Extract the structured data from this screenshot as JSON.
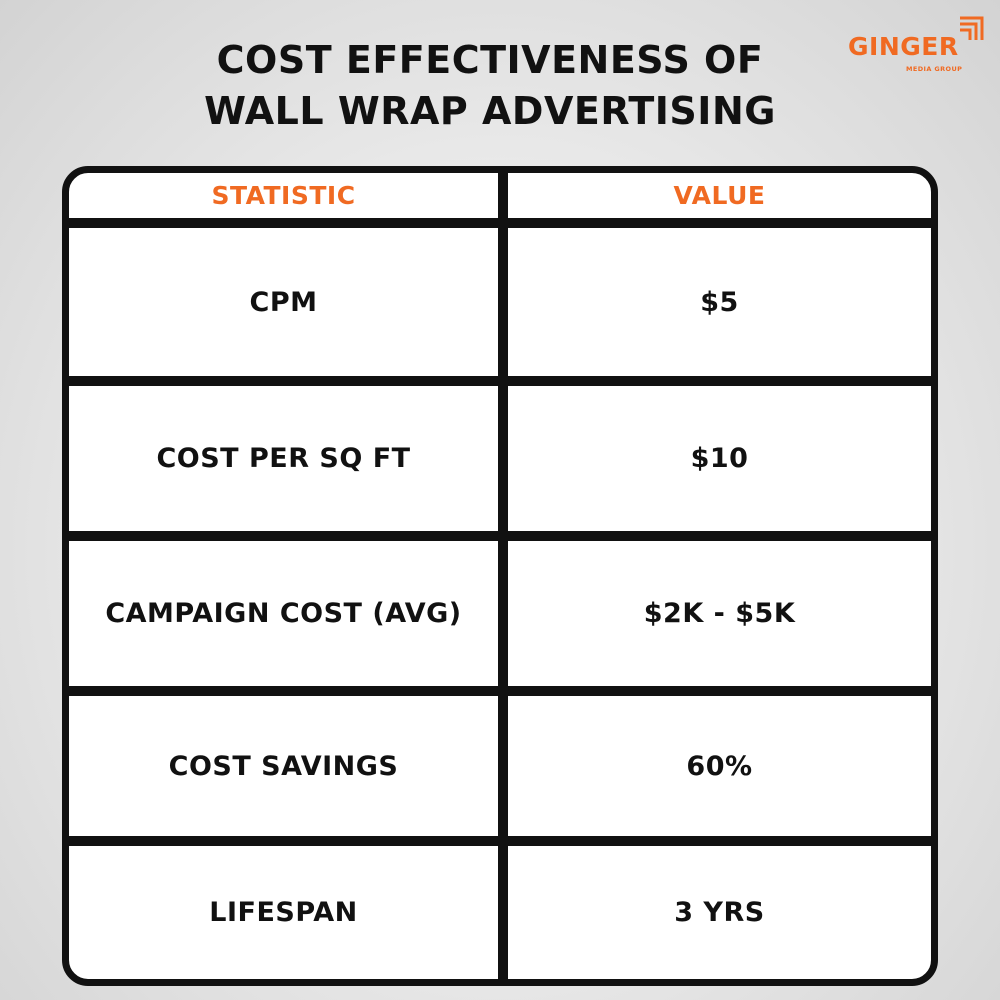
{
  "title": {
    "line1": "COST EFFECTIVENESS OF",
    "line2": "WALL WRAP ADVERTISING"
  },
  "logo": {
    "name": "GINGER",
    "subtitle": "MEDIA GROUP",
    "icon": "stacked-corner-icon",
    "color": "#f06a22"
  },
  "table": {
    "headers": [
      "STATISTIC",
      "VALUE"
    ],
    "rows": [
      [
        "CPM",
        "$5"
      ],
      [
        "COST PER SQ FT",
        "$10"
      ],
      [
        "CAMPAIGN COST (AVG)",
        "$2K - $5K"
      ],
      [
        "COST SAVINGS",
        "60%"
      ],
      [
        "LIFESPAN",
        "3 YRS"
      ]
    ]
  },
  "colors": {
    "accent": "#f06a22",
    "text": "#111111",
    "border": "#111111",
    "cell_background": "#ffffff"
  }
}
